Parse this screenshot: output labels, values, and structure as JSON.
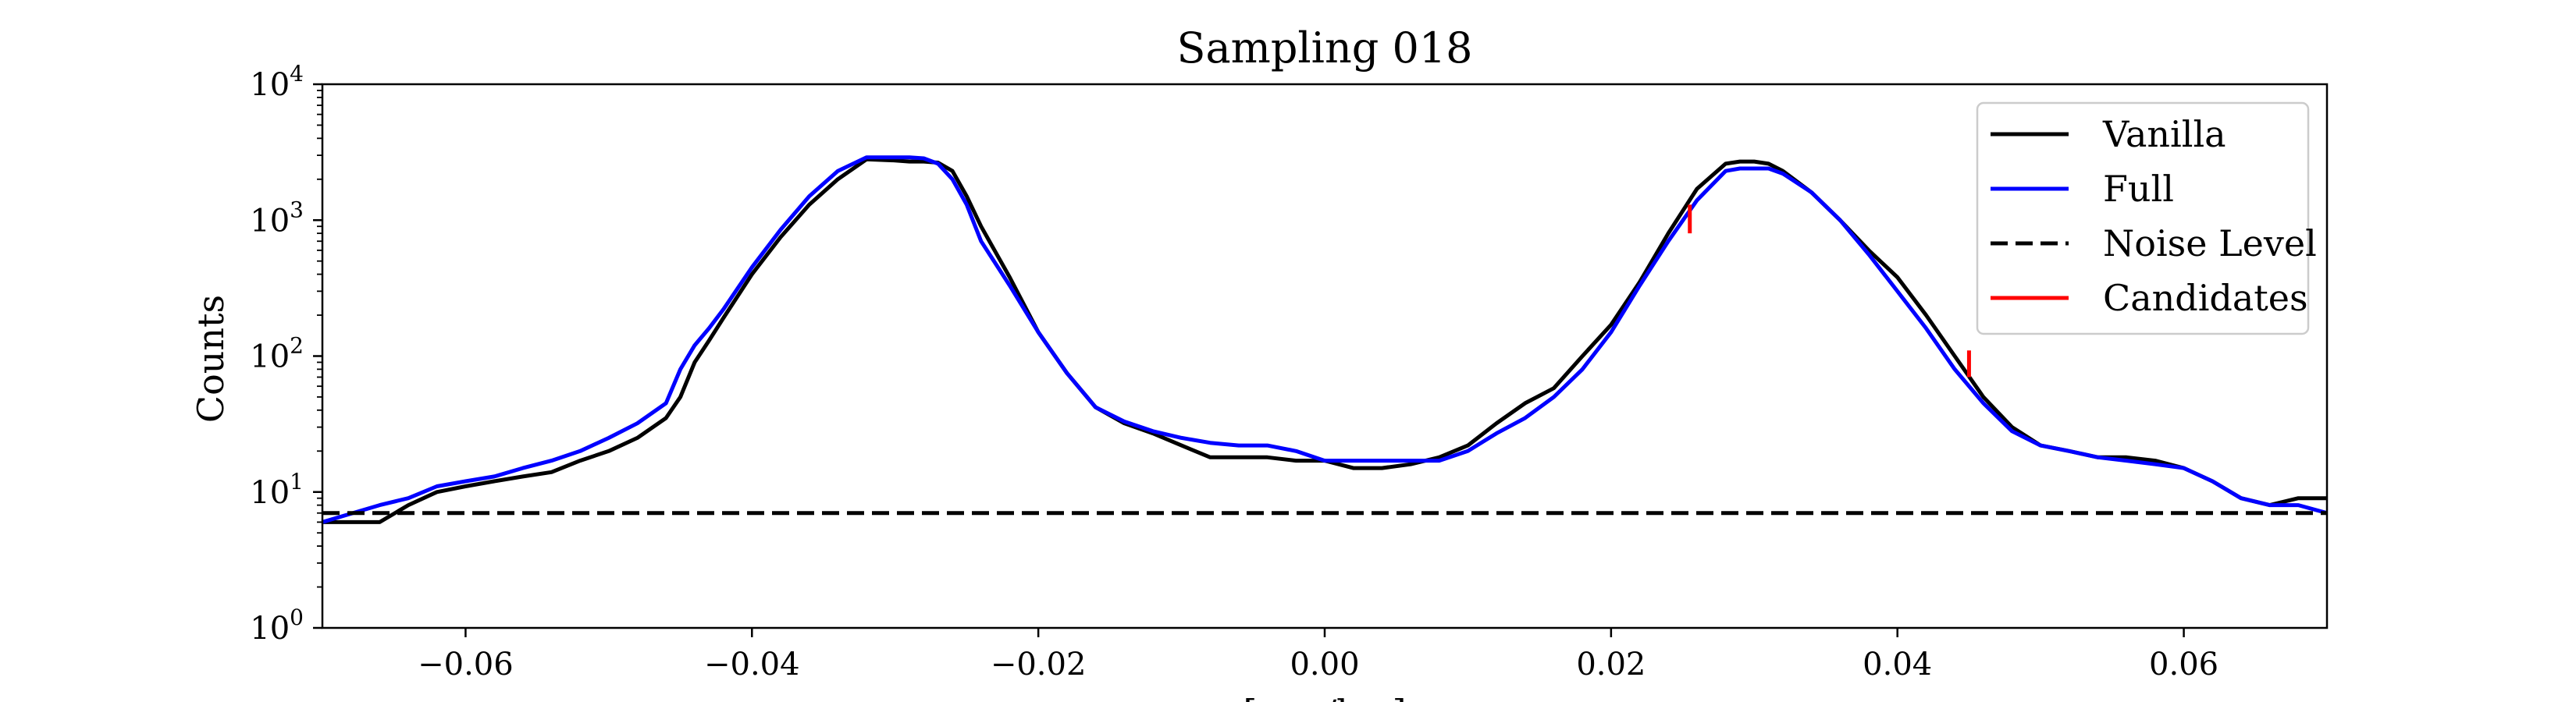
{
  "chart_data": {
    "type": "line",
    "title": "Sampling 018",
    "xlabel": "[a.u./km]",
    "ylabel": "Counts",
    "xlim": [
      -0.07,
      0.07
    ],
    "ylim": [
      1,
      10000
    ],
    "yscale": "log",
    "grid": false,
    "legend_position": "top-right",
    "x_ticks": [
      -0.06,
      -0.04,
      -0.02,
      0.0,
      0.02,
      0.04,
      0.06
    ],
    "x_tick_labels": [
      "−0.06",
      "−0.04",
      "−0.02",
      "0.00",
      "0.02",
      "0.04",
      "0.06"
    ],
    "y_ticks": [
      1,
      10,
      100,
      1000,
      10000
    ],
    "y_tick_exponents": [
      "0",
      "1",
      "2",
      "3",
      "4"
    ],
    "series": [
      {
        "name": "Vanilla",
        "color": "#000000",
        "style": "solid",
        "x": [
          -0.07,
          -0.066,
          -0.064,
          -0.062,
          -0.06,
          -0.058,
          -0.056,
          -0.054,
          -0.052,
          -0.05,
          -0.048,
          -0.046,
          -0.045,
          -0.044,
          -0.043,
          -0.042,
          -0.04,
          -0.038,
          -0.036,
          -0.034,
          -0.032,
          -0.03,
          -0.029,
          -0.028,
          -0.027,
          -0.026,
          -0.025,
          -0.024,
          -0.022,
          -0.02,
          -0.018,
          -0.016,
          -0.014,
          -0.012,
          -0.01,
          -0.008,
          -0.006,
          -0.004,
          -0.002,
          0.0,
          0.002,
          0.004,
          0.006,
          0.008,
          0.01,
          0.012,
          0.014,
          0.016,
          0.018,
          0.02,
          0.022,
          0.024,
          0.026,
          0.028,
          0.029,
          0.03,
          0.031,
          0.032,
          0.034,
          0.036,
          0.038,
          0.04,
          0.042,
          0.044,
          0.046,
          0.048,
          0.05,
          0.052,
          0.054,
          0.056,
          0.058,
          0.06,
          0.062,
          0.064,
          0.066,
          0.068,
          0.07
        ],
        "y": [
          6,
          6,
          8,
          10,
          11,
          12,
          13,
          14,
          17,
          20,
          25,
          35,
          50,
          90,
          130,
          190,
          400,
          750,
          1300,
          2000,
          2800,
          2750,
          2700,
          2700,
          2650,
          2300,
          1500,
          900,
          380,
          150,
          75,
          42,
          32,
          27,
          22,
          18,
          18,
          18,
          17,
          17,
          15,
          15,
          16,
          18,
          22,
          32,
          45,
          58,
          100,
          170,
          350,
          800,
          1700,
          2600,
          2700,
          2700,
          2600,
          2300,
          1600,
          1000,
          600,
          380,
          200,
          100,
          50,
          30,
          22,
          20,
          18,
          18,
          17,
          15,
          12,
          9,
          8,
          9,
          9
        ]
      },
      {
        "name": "Full",
        "color": "#0000ff",
        "style": "solid",
        "x": [
          -0.07,
          -0.066,
          -0.064,
          -0.062,
          -0.06,
          -0.058,
          -0.056,
          -0.054,
          -0.052,
          -0.05,
          -0.048,
          -0.046,
          -0.045,
          -0.044,
          -0.043,
          -0.042,
          -0.04,
          -0.038,
          -0.036,
          -0.034,
          -0.032,
          -0.03,
          -0.029,
          -0.028,
          -0.027,
          -0.026,
          -0.025,
          -0.024,
          -0.022,
          -0.02,
          -0.018,
          -0.016,
          -0.014,
          -0.012,
          -0.01,
          -0.008,
          -0.006,
          -0.004,
          -0.002,
          0.0,
          0.002,
          0.004,
          0.006,
          0.008,
          0.01,
          0.012,
          0.014,
          0.016,
          0.018,
          0.02,
          0.022,
          0.024,
          0.026,
          0.028,
          0.029,
          0.03,
          0.031,
          0.032,
          0.034,
          0.036,
          0.038,
          0.04,
          0.042,
          0.044,
          0.046,
          0.048,
          0.05,
          0.052,
          0.054,
          0.056,
          0.058,
          0.06,
          0.062,
          0.064,
          0.066,
          0.068,
          0.07
        ],
        "y": [
          6,
          8,
          9,
          11,
          12,
          13,
          15,
          17,
          20,
          25,
          32,
          45,
          80,
          120,
          160,
          220,
          450,
          850,
          1500,
          2300,
          2900,
          2900,
          2900,
          2850,
          2600,
          2000,
          1300,
          700,
          330,
          150,
          75,
          42,
          33,
          28,
          25,
          23,
          22,
          22,
          20,
          17,
          17,
          17,
          17,
          17,
          20,
          27,
          35,
          50,
          80,
          150,
          330,
          700,
          1400,
          2300,
          2400,
          2400,
          2400,
          2200,
          1600,
          1000,
          560,
          300,
          160,
          80,
          45,
          28,
          22,
          20,
          18,
          17,
          16,
          15,
          12,
          9,
          8,
          8,
          7
        ]
      },
      {
        "name": "Noise Level",
        "color": "#000000",
        "style": "dashed",
        "x": [
          -0.07,
          0.07
        ],
        "y": [
          7,
          7
        ]
      },
      {
        "name": "Candidates",
        "color": "#ff0000",
        "style": "solid",
        "segments": [
          {
            "x": [
              0.0255,
              0.0255
            ],
            "y": [
              800,
              1300
            ]
          },
          {
            "x": [
              0.045,
              0.045
            ],
            "y": [
              70,
              110
            ]
          }
        ]
      }
    ]
  }
}
